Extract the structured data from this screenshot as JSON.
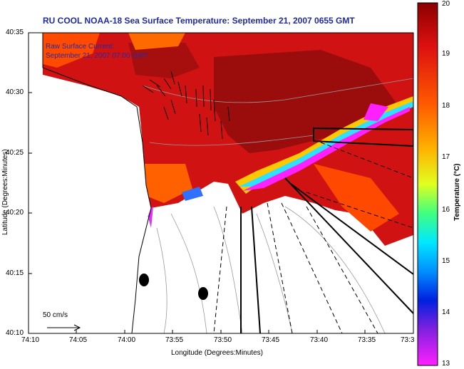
{
  "title": "RU COOL  NOAA-18  Sea Surface Temperature:  September 21, 2007 0655 GMT",
  "current_label": "Raw Surface Current:",
  "current_time": "September 21, 2007 07:00 GMT",
  "scale_label": "50 cm/s",
  "x_axis_label": "Longitude (Degrees:Minutes)",
  "y_axis_label": "Latitude (Degrees:Minutes)",
  "x_ticks": [
    "74:10",
    "74:05",
    "74:00",
    "73:55",
    "73:50",
    "73:45",
    "73:40",
    "73:35",
    "73:3"
  ],
  "y_ticks": [
    "40:35",
    "40:30",
    "40:25",
    "40:20",
    "40:15",
    "40:10"
  ],
  "colorbar": {
    "title": "Temperature (°C)",
    "ticks": [
      "20",
      "19",
      "18",
      "17",
      "16",
      "15",
      "14",
      "13"
    ],
    "range": [
      13,
      20
    ]
  },
  "colors": {
    "title": "#1f2aa8",
    "warm": "#c40a0a",
    "hot": "#8e0b0b",
    "cool": "#ff3e00",
    "land": "#ffffff"
  }
}
